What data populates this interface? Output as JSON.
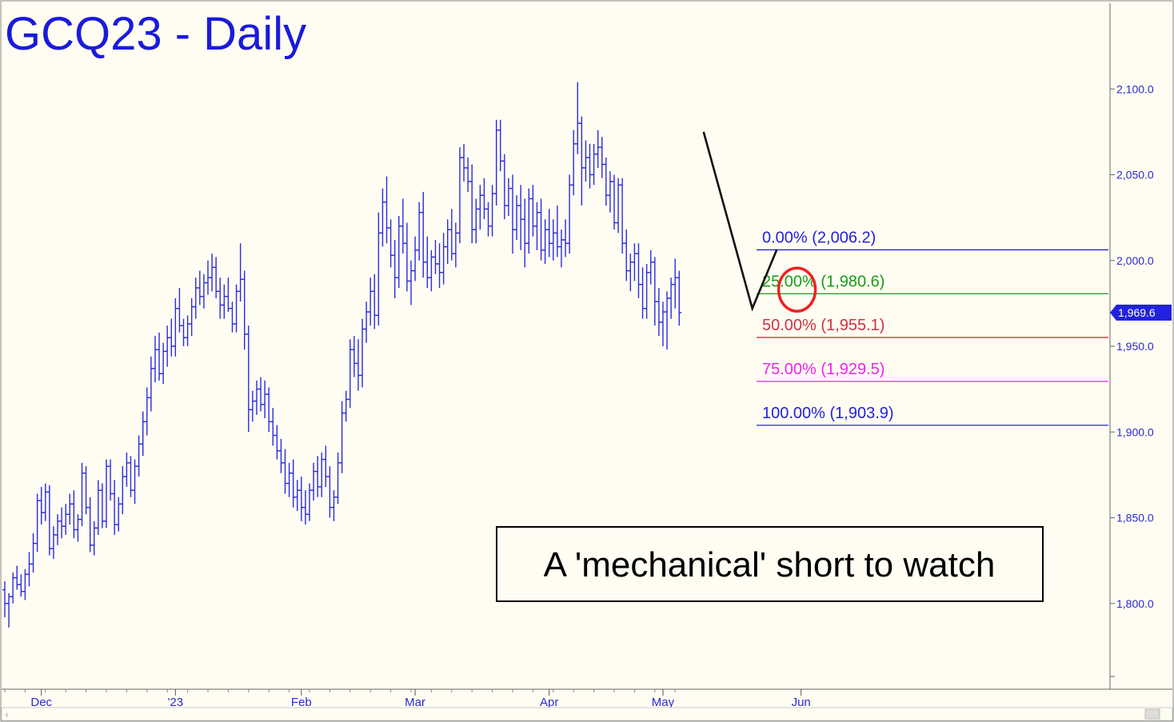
{
  "chart_data": {
    "type": "ohlc",
    "title": "GCQ23 - Daily",
    "annotation": "A 'mechanical' short to watch",
    "y_axis": {
      "range": [
        1750,
        2150
      ],
      "ticks": [
        "2,100.0",
        "2,050.0",
        "2,000.0",
        "1,950.0",
        "1,900.0",
        "1,850.0",
        "1,800.0"
      ],
      "tick_values": [
        2100,
        2050,
        2000,
        1950,
        1900,
        1850,
        1800
      ]
    },
    "x_axis": {
      "labels": [
        "Dec",
        "'23",
        "Feb",
        "Mar",
        "Apr",
        "May",
        "Jun"
      ],
      "label_bar_index": [
        9,
        42,
        73,
        101,
        134,
        162,
        196
      ]
    },
    "last_price": {
      "value": 1969.6,
      "label": "1,969.6"
    },
    "fib_levels": [
      {
        "pct": "0.00%",
        "value": 2006.2,
        "label": "0.00% (2,006.2)",
        "color": "#2222dd"
      },
      {
        "pct": "25.00%",
        "value": 1980.6,
        "label": "25.00% (1,980.6)",
        "color": "#1a9a1a"
      },
      {
        "pct": "50.00%",
        "value": 1955.1,
        "label": "50.00% (1,955.1)",
        "color": "#d03040"
      },
      {
        "pct": "75.00%",
        "value": 1929.5,
        "label": "75.00% (1,929.5)",
        "color": "#ee22ee"
      },
      {
        "pct": "100.00%",
        "value": 1903.9,
        "label": "100.00% (1,903.9)",
        "color": "#2222dd"
      }
    ],
    "pattern_points": [
      {
        "bar": 172,
        "value": 2075
      },
      {
        "bar": 184,
        "value": 1972
      },
      {
        "bar": 190,
        "value": 2006.2
      }
    ],
    "highlight": {
      "bar": 195,
      "value": 1983,
      "color": "#ee2222"
    },
    "bars": [
      [
        1808,
        1813,
        1792,
        1800
      ],
      [
        1800,
        1806,
        1786,
        1804
      ],
      [
        1804,
        1818,
        1800,
        1815
      ],
      [
        1815,
        1822,
        1808,
        1811
      ],
      [
        1811,
        1817,
        1804,
        1807
      ],
      [
        1807,
        1820,
        1802,
        1817
      ],
      [
        1817,
        1830,
        1810,
        1823
      ],
      [
        1823,
        1841,
        1818,
        1835
      ],
      [
        1835,
        1864,
        1830,
        1860
      ],
      [
        1860,
        1868,
        1846,
        1853
      ],
      [
        1853,
        1870,
        1848,
        1865
      ],
      [
        1865,
        1869,
        1828,
        1832
      ],
      [
        1832,
        1845,
        1826,
        1840
      ],
      [
        1840,
        1852,
        1834,
        1848
      ],
      [
        1848,
        1856,
        1838,
        1845
      ],
      [
        1845,
        1858,
        1840,
        1852
      ],
      [
        1852,
        1864,
        1846,
        1858
      ],
      [
        1858,
        1866,
        1838,
        1843
      ],
      [
        1843,
        1852,
        1836,
        1849
      ],
      [
        1849,
        1882,
        1845,
        1876
      ],
      [
        1876,
        1880,
        1852,
        1856
      ],
      [
        1856,
        1862,
        1830,
        1834
      ],
      [
        1834,
        1848,
        1828,
        1844
      ],
      [
        1844,
        1872,
        1840,
        1866
      ],
      [
        1866,
        1870,
        1844,
        1848
      ],
      [
        1848,
        1884,
        1844,
        1880
      ],
      [
        1880,
        1884,
        1860,
        1864
      ],
      [
        1864,
        1872,
        1840,
        1846
      ],
      [
        1846,
        1862,
        1842,
        1858
      ],
      [
        1858,
        1880,
        1852,
        1874
      ],
      [
        1874,
        1888,
        1868,
        1882
      ],
      [
        1882,
        1886,
        1862,
        1866
      ],
      [
        1866,
        1884,
        1858,
        1880
      ],
      [
        1880,
        1898,
        1874,
        1893
      ],
      [
        1893,
        1912,
        1886,
        1906
      ],
      [
        1906,
        1926,
        1898,
        1920
      ],
      [
        1920,
        1944,
        1912,
        1937
      ],
      [
        1937,
        1956,
        1929,
        1948
      ],
      [
        1948,
        1958,
        1930,
        1934
      ],
      [
        1934,
        1952,
        1928,
        1947
      ],
      [
        1947,
        1962,
        1938,
        1955
      ],
      [
        1955,
        1966,
        1944,
        1950
      ],
      [
        1950,
        1978,
        1944,
        1972
      ],
      [
        1972,
        1984,
        1958,
        1962
      ],
      [
        1962,
        1966,
        1950,
        1955
      ],
      [
        1955,
        1968,
        1950,
        1963
      ],
      [
        1963,
        1978,
        1956,
        1973
      ],
      [
        1973,
        1990,
        1966,
        1984
      ],
      [
        1984,
        1994,
        1974,
        1979
      ],
      [
        1979,
        1992,
        1972,
        1987
      ],
      [
        1987,
        2000,
        1980,
        1990
      ],
      [
        1990,
        2004,
        1982,
        1996
      ],
      [
        1996,
        2002,
        1978,
        1982
      ],
      [
        1982,
        1990,
        1966,
        1974
      ],
      [
        1974,
        1986,
        1966,
        1979
      ],
      [
        1979,
        1990,
        1970,
        1972
      ],
      [
        1972,
        1976,
        1958,
        1963
      ],
      [
        1963,
        1986,
        1958,
        1982
      ],
      [
        1982,
        2010,
        1976,
        1989
      ],
      [
        1989,
        1994,
        1948,
        1957
      ],
      [
        1957,
        1962,
        1900,
        1913
      ],
      [
        1913,
        1924,
        1906,
        1918
      ],
      [
        1918,
        1930,
        1910,
        1925
      ],
      [
        1925,
        1932,
        1912,
        1916
      ],
      [
        1916,
        1930,
        1908,
        1922
      ],
      [
        1922,
        1926,
        1900,
        1906
      ],
      [
        1906,
        1914,
        1892,
        1898
      ],
      [
        1898,
        1904,
        1884,
        1889
      ],
      [
        1889,
        1896,
        1876,
        1882
      ],
      [
        1882,
        1890,
        1864,
        1870
      ],
      [
        1870,
        1882,
        1862,
        1876
      ],
      [
        1876,
        1884,
        1856,
        1862
      ],
      [
        1862,
        1872,
        1854,
        1866
      ],
      [
        1866,
        1874,
        1848,
        1856
      ],
      [
        1856,
        1866,
        1846,
        1852
      ],
      [
        1852,
        1870,
        1848,
        1866
      ],
      [
        1866,
        1882,
        1860,
        1877
      ],
      [
        1877,
        1886,
        1862,
        1868
      ],
      [
        1868,
        1888,
        1862,
        1884
      ],
      [
        1884,
        1892,
        1868,
        1874
      ],
      [
        1874,
        1880,
        1850,
        1856
      ],
      [
        1856,
        1866,
        1848,
        1862
      ],
      [
        1862,
        1888,
        1858,
        1882
      ],
      [
        1882,
        1918,
        1876,
        1911
      ],
      [
        1911,
        1924,
        1906,
        1919
      ],
      [
        1919,
        1954,
        1914,
        1948
      ],
      [
        1948,
        1956,
        1932,
        1940
      ],
      [
        1940,
        1954,
        1924,
        1933
      ],
      [
        1933,
        1966,
        1926,
        1960
      ],
      [
        1960,
        1976,
        1952,
        1970
      ],
      [
        1970,
        1990,
        1962,
        1982
      ],
      [
        1982,
        1992,
        1960,
        1968
      ],
      [
        1968,
        2028,
        1962,
        2016
      ],
      [
        2016,
        2042,
        2008,
        2034
      ],
      [
        2034,
        2049,
        2010,
        2019
      ],
      [
        2019,
        2024,
        1996,
        2003
      ],
      [
        2003,
        2012,
        1978,
        1990
      ],
      [
        1990,
        2026,
        1984,
        2020
      ],
      [
        2020,
        2036,
        2004,
        2010
      ],
      [
        2010,
        2022,
        1982,
        1988
      ],
      [
        1988,
        2000,
        1974,
        1994
      ],
      [
        1994,
        2014,
        1988,
        2006
      ],
      [
        2006,
        2034,
        2000,
        2028
      ],
      [
        2028,
        2040,
        1990,
        1999
      ],
      [
        1999,
        2014,
        1984,
        1990
      ],
      [
        1990,
        2006,
        1982,
        2002
      ],
      [
        2002,
        2012,
        1992,
        1998
      ],
      [
        1998,
        2010,
        1984,
        1993
      ],
      [
        1993,
        2016,
        1986,
        2008
      ],
      [
        2008,
        2024,
        1998,
        2018
      ],
      [
        2018,
        2030,
        2000,
        2004
      ],
      [
        2004,
        2022,
        1996,
        2016
      ],
      [
        2016,
        2066,
        2010,
        2060
      ],
      [
        2060,
        2068,
        2046,
        2054
      ],
      [
        2054,
        2060,
        2040,
        2046
      ],
      [
        2046,
        2056,
        2010,
        2018
      ],
      [
        2018,
        2036,
        2010,
        2030
      ],
      [
        2030,
        2044,
        2018,
        2038
      ],
      [
        2038,
        2048,
        2024,
        2030
      ],
      [
        2030,
        2034,
        2014,
        2020
      ],
      [
        2020,
        2044,
        2014,
        2039
      ],
      [
        2039,
        2082,
        2032,
        2076
      ],
      [
        2076,
        2082,
        2052,
        2058
      ],
      [
        2058,
        2062,
        2024,
        2032
      ],
      [
        2032,
        2048,
        2026,
        2042
      ],
      [
        2042,
        2050,
        2004,
        2018
      ],
      [
        2018,
        2038,
        2012,
        2032
      ],
      [
        2032,
        2044,
        2006,
        2024
      ],
      [
        2024,
        2036,
        1996,
        2010
      ],
      [
        2010,
        2042,
        2004,
        2036
      ],
      [
        2036,
        2044,
        2014,
        2020
      ],
      [
        2020,
        2034,
        2006,
        2028
      ],
      [
        2028,
        2036,
        2000,
        2006
      ],
      [
        2006,
        2024,
        1998,
        2018
      ],
      [
        2018,
        2030,
        2002,
        2010
      ],
      [
        2010,
        2024,
        2000,
        2016
      ],
      [
        2016,
        2032,
        2002,
        2008
      ],
      [
        2008,
        2018,
        1996,
        2012
      ],
      [
        2012,
        2024,
        2002,
        2010
      ],
      [
        2010,
        2050,
        2004,
        2044
      ],
      [
        2044,
        2076,
        2038,
        2068
      ],
      [
        2068,
        2104,
        2062,
        2080
      ],
      [
        2080,
        2084,
        2032,
        2054
      ],
      [
        2054,
        2070,
        2046,
        2060
      ],
      [
        2060,
        2068,
        2042,
        2050
      ],
      [
        2050,
        2068,
        2044,
        2062
      ],
      [
        2062,
        2076,
        2054,
        2066
      ],
      [
        2066,
        2072,
        2048,
        2056
      ],
      [
        2056,
        2060,
        2032,
        2038
      ],
      [
        2038,
        2052,
        2028,
        2046
      ],
      [
        2046,
        2050,
        2018,
        2022
      ],
      [
        2022,
        2048,
        2016,
        2044
      ],
      [
        2044,
        2048,
        2004,
        2010
      ],
      [
        2010,
        2018,
        1988,
        1994
      ],
      [
        1994,
        2004,
        1982,
        1999
      ],
      [
        1999,
        2010,
        1988,
        2004
      ],
      [
        2004,
        2010,
        1978,
        1986
      ],
      [
        1986,
        1996,
        1966,
        1972
      ],
      [
        1972,
        1998,
        1966,
        1993
      ],
      [
        1993,
        2006,
        1986,
        1999
      ],
      [
        1999,
        2002,
        1962,
        1976
      ],
      [
        1976,
        1984,
        1956,
        1964
      ],
      [
        1964,
        1976,
        1950,
        1970
      ],
      [
        1970,
        1982,
        1948,
        1978
      ],
      [
        1978,
        1990,
        1966,
        1986
      ],
      [
        1986,
        2001,
        1972,
        1990
      ],
      [
        1990,
        1994,
        1962,
        1969.6
      ]
    ]
  }
}
